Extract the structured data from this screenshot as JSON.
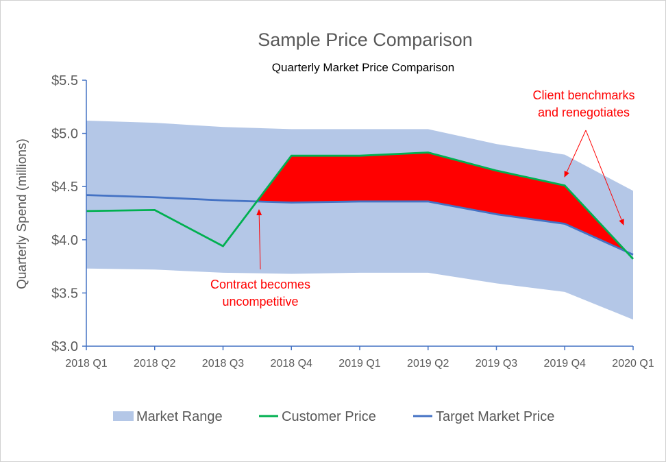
{
  "chart_data": {
    "type": "area",
    "title": "Sample Price Comparison",
    "subtitle": "Quarterly Market Price Comparison",
    "ylabel": "Quarterly Spend (millions)",
    "xlabel": "",
    "ylim": [
      3.0,
      5.5
    ],
    "yticks": [
      "$3.0",
      "$3.5",
      "$4.0",
      "$4.5",
      "$5.0",
      "$5.5"
    ],
    "ytick_values": [
      3.0,
      3.5,
      4.0,
      4.5,
      5.0,
      5.5
    ],
    "categories": [
      "2018 Q1",
      "2018 Q2",
      "2018 Q3",
      "2018 Q4",
      "2019 Q1",
      "2019 Q2",
      "2019 Q3",
      "2019 Q4",
      "2020 Q1"
    ],
    "series": [
      {
        "name": "Market Range",
        "type": "band",
        "color": "#b4c7e7",
        "upper": [
          5.12,
          5.1,
          5.06,
          5.04,
          5.04,
          5.04,
          4.9,
          4.8,
          4.46
        ],
        "lower": [
          3.73,
          3.72,
          3.69,
          3.68,
          3.69,
          3.69,
          3.59,
          3.51,
          3.25
        ]
      },
      {
        "name": "Customer Price",
        "type": "line",
        "color": "#00b050",
        "values": [
          4.27,
          4.28,
          3.94,
          4.79,
          4.79,
          4.82,
          4.65,
          4.51,
          3.82
        ]
      },
      {
        "name": "Target Market Price",
        "type": "line",
        "color": "#4472c4",
        "values": [
          4.42,
          4.4,
          4.37,
          4.35,
          4.36,
          4.36,
          4.24,
          4.15,
          3.86
        ]
      }
    ],
    "highlight_color": "#ff0000",
    "grid": false,
    "legend_position": "bottom",
    "annotations": [
      {
        "lines": [
          "Contract becomes",
          "uncompetitive"
        ],
        "color": "#ff0000"
      },
      {
        "lines": [
          "Client benchmarks",
          "and renegotiates"
        ],
        "color": "#ff0000"
      }
    ]
  }
}
